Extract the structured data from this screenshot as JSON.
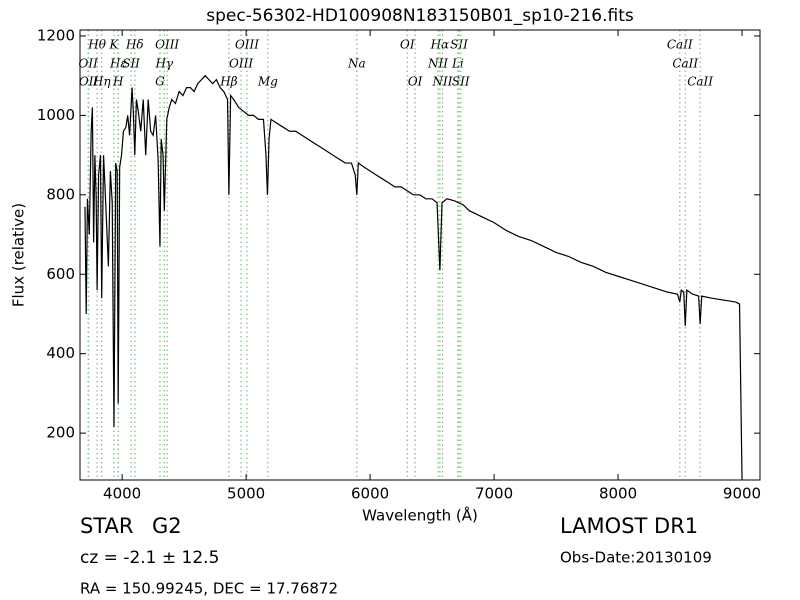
{
  "chart_data": {
    "type": "line",
    "title": "spec-56302-HD100908N183150B01_sp10-216.fits",
    "xlabel": "Wavelength (Å)",
    "ylabel": "Flux (relative)",
    "xlim": [
      3660,
      9145
    ],
    "ylim": [
      82,
      1215
    ],
    "xticks": [
      4000,
      5000,
      6000,
      7000,
      8000,
      9000
    ],
    "yticks": [
      200,
      400,
      600,
      800,
      1000,
      1200
    ],
    "x": [
      3700,
      3710,
      3720,
      3735,
      3750,
      3760,
      3770,
      3780,
      3790,
      3798,
      3810,
      3825,
      3835,
      3850,
      3870,
      3889,
      3905,
      3920,
      3934,
      3948,
      3960,
      3968,
      3980,
      3995,
      4010,
      4030,
      4045,
      4060,
      4080,
      4090,
      4102,
      4115,
      4130,
      4150,
      4170,
      4190,
      4210,
      4230,
      4250,
      4270,
      4290,
      4305,
      4315,
      4330,
      4340,
      4360,
      4380,
      4400,
      4430,
      4460,
      4490,
      4520,
      4550,
      4580,
      4610,
      4640,
      4670,
      4700,
      4730,
      4760,
      4790,
      4820,
      4850,
      4861,
      4875,
      4900,
      4940,
      4980,
      5020,
      5060,
      5100,
      5140,
      5160,
      5172,
      5185,
      5200,
      5250,
      5300,
      5350,
      5400,
      5450,
      5500,
      5550,
      5600,
      5650,
      5700,
      5750,
      5800,
      5850,
      5880,
      5893,
      5905,
      5950,
      6000,
      6050,
      6100,
      6150,
      6200,
      6250,
      6300,
      6350,
      6400,
      6450,
      6500,
      6540,
      6563,
      6580,
      6620,
      6680,
      6750,
      6800,
      6900,
      7000,
      7100,
      7200,
      7300,
      7400,
      7500,
      7600,
      7700,
      7800,
      7900,
      8000,
      8100,
      8200,
      8300,
      8400,
      8480,
      8498,
      8510,
      8530,
      8542,
      8555,
      8600,
      8650,
      8662,
      8675,
      8750,
      8850,
      8950,
      8980,
      9000
    ],
    "series": [
      {
        "color": "#000000",
        "values": [
          770,
          500,
          790,
          700,
          960,
          1020,
          680,
          900,
          800,
          560,
          850,
          900,
          540,
          900,
          760,
          620,
          860,
          780,
          215,
          880,
          860,
          275,
          870,
          900,
          960,
          970,
          1000,
          950,
          1070,
          1010,
          900,
          1040,
          1010,
          960,
          1040,
          900,
          1040,
          960,
          950,
          1000,
          890,
          670,
          940,
          900,
          760,
          990,
          1020,
          1040,
          1030,
          1060,
          1050,
          1070,
          1070,
          1060,
          1080,
          1090,
          1100,
          1090,
          1080,
          1090,
          1070,
          1060,
          1040,
          800,
          1050,
          1040,
          1020,
          1010,
          1000,
          1000,
          990,
          990,
          900,
          800,
          940,
          990,
          980,
          970,
          960,
          960,
          950,
          940,
          930,
          920,
          910,
          900,
          890,
          880,
          880,
          850,
          800,
          880,
          870,
          860,
          850,
          840,
          830,
          820,
          820,
          810,
          800,
          800,
          790,
          790,
          780,
          610,
          780,
          790,
          785,
          775,
          760,
          745,
          730,
          710,
          695,
          685,
          670,
          655,
          645,
          630,
          620,
          605,
          595,
          585,
          575,
          565,
          555,
          550,
          530,
          560,
          555,
          470,
          560,
          550,
          545,
          475,
          545,
          540,
          535,
          530,
          525,
          85
        ]
      }
    ],
    "line_color": "#7fbf7f",
    "annotations": [
      {
        "text": "Hθ",
        "x": 3798
      },
      {
        "text": "K",
        "x": 3934
      },
      {
        "text": "Hδ",
        "x": 4102
      },
      {
        "text": "OIII",
        "x": 4363
      },
      {
        "text": "OIII",
        "x": 5007
      },
      {
        "text": "OI",
        "x": 6300
      },
      {
        "text": "Hα",
        "x": 6563
      },
      {
        "text": "SII",
        "x": 6717
      },
      {
        "text": "CaII",
        "x": 8498
      },
      {
        "text": "OII",
        "x": 3726
      },
      {
        "text": "Hε",
        "x": 3970
      },
      {
        "text": "SII",
        "x": 4072
      },
      {
        "text": "Hγ",
        "x": 4340
      },
      {
        "text": "OIII",
        "x": 4959
      },
      {
        "text": "Na",
        "x": 5893
      },
      {
        "text": "NII",
        "x": 6548
      },
      {
        "text": "Li",
        "x": 6708
      },
      {
        "text": "CaII",
        "x": 8542
      },
      {
        "text": "OII",
        "x": 3729
      },
      {
        "text": "Hη",
        "x": 3835
      },
      {
        "text": "H",
        "x": 3968
      },
      {
        "text": "G",
        "x": 4305
      },
      {
        "text": "Hβ",
        "x": 4861
      },
      {
        "text": "Mg",
        "x": 5175
      },
      {
        "text": "OI",
        "x": 6363
      },
      {
        "text": "NII",
        "x": 6584
      },
      {
        "text": "SII",
        "x": 6731
      },
      {
        "text": "CaII",
        "x": 8662
      }
    ]
  },
  "info": {
    "class": "STAR",
    "subclass": "G2",
    "redshift": "cz = -2.1 ± 12.5",
    "position": "RA = 150.99245, DEC = 17.76872",
    "survey": "LAMOST DR1",
    "obs_date": "Obs-Date:20130109"
  }
}
